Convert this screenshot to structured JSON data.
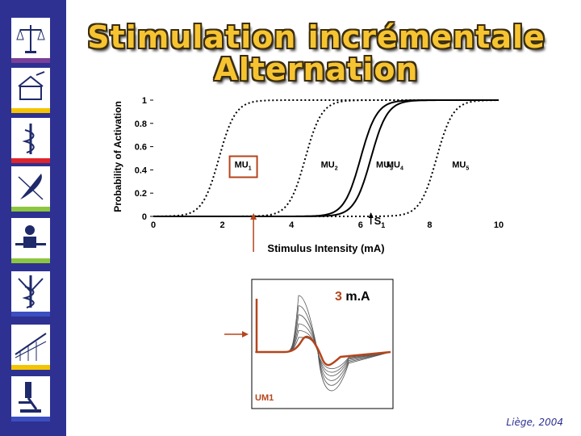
{
  "title": {
    "line1": "Stimulation incrémentale",
    "line2": "Alternation"
  },
  "sidebar": {
    "icons": [
      "scales-icon",
      "press-icon",
      "caduceus-icon",
      "quill-icon",
      "teacher-icon",
      "medical-symbol-icon",
      "bridge-icon",
      "microscope-icon"
    ],
    "bar_colors": [
      "#7a3f98",
      "#f5c400",
      "#e0242b",
      "#8cc63f",
      "#8cc63f",
      "#3c4fc1",
      "#f5c400",
      "#3c4fc1"
    ]
  },
  "chart_data": {
    "type": "line",
    "ylabel": "Probability of Activation",
    "xlabel": "Stimulus Intensity (mA)",
    "x_ticks": [
      "0",
      "2",
      "4",
      "6",
      "8",
      "10"
    ],
    "y_ticks": [
      "0",
      "0.2",
      "0.4",
      "0.6",
      "0.8",
      "1"
    ],
    "xlim": [
      0,
      10
    ],
    "ylim": [
      0,
      1
    ],
    "series": [
      {
        "name": "MU1",
        "midpoint": 1.9,
        "style": "dotted"
      },
      {
        "name": "MU2",
        "midpoint": 4.4,
        "style": "dotted"
      },
      {
        "name": "MU3",
        "midpoint": 6.0,
        "style": "solid"
      },
      {
        "name": "MU4",
        "midpoint": 6.3,
        "style": "solid"
      },
      {
        "name": "MU5",
        "midpoint": 8.2,
        "style": "dotted"
      }
    ],
    "annotations": {
      "s1_label": "S",
      "s1_sub": "1",
      "s1_x": 6.3,
      "arrow_x": 2.9
    },
    "highlight_color": "#b5451b"
  },
  "trace": {
    "current_value": "3",
    "current_unit": "m.A",
    "unit_label": "UM1",
    "accent": "#b5451b"
  },
  "footer": "Liège, 2004"
}
